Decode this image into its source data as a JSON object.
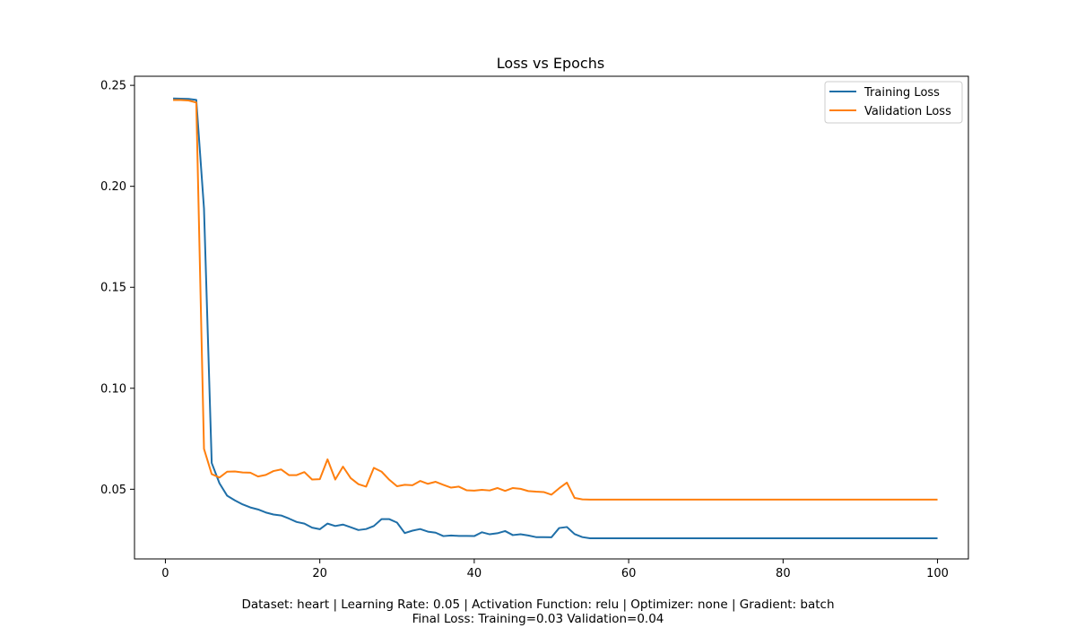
{
  "chart_data": {
    "type": "line",
    "title": "Loss vs Epochs",
    "xlabel": "",
    "ylabel": "",
    "xlim": [
      -4,
      104
    ],
    "ylim": [
      0.0155,
      0.2545
    ],
    "x_ticks": [
      0,
      20,
      40,
      60,
      80,
      100
    ],
    "y_ticks": [
      0.05,
      0.1,
      0.15,
      0.2,
      0.25
    ],
    "grid": false,
    "legend": "upper-right",
    "series": [
      {
        "name": "Training Loss",
        "color": "#1f6fa8",
        "x": [
          1,
          2,
          3,
          4,
          5,
          6,
          7,
          8,
          9,
          10,
          11,
          12,
          13,
          14,
          15,
          16,
          17,
          18,
          19,
          20,
          21,
          22,
          23,
          24,
          25,
          26,
          27,
          28,
          29,
          30,
          31,
          32,
          33,
          34,
          35,
          36,
          37,
          38,
          39,
          40,
          41,
          42,
          43,
          44,
          45,
          46,
          47,
          48,
          49,
          50,
          51,
          52,
          53,
          54,
          55,
          56,
          57,
          58,
          59,
          60,
          61,
          62,
          63,
          64,
          65,
          66,
          67,
          68,
          69,
          70,
          71,
          72,
          73,
          74,
          75,
          76,
          77,
          78,
          79,
          80,
          81,
          82,
          83,
          84,
          85,
          86,
          87,
          88,
          89,
          90,
          91,
          92,
          93,
          94,
          95,
          96,
          97,
          98,
          99,
          100
        ],
        "y": [
          0.2435,
          0.2434,
          0.2433,
          0.2428,
          0.189,
          0.063,
          0.053,
          0.0468,
          0.0445,
          0.0425,
          0.041,
          0.04,
          0.0385,
          0.0375,
          0.037,
          0.0355,
          0.0338,
          0.033,
          0.031,
          0.0302,
          0.033,
          0.0318,
          0.0325,
          0.0312,
          0.0298,
          0.0303,
          0.0318,
          0.0352,
          0.0352,
          0.0335,
          0.0283,
          0.0295,
          0.0303,
          0.029,
          0.0285,
          0.0268,
          0.0271,
          0.0269,
          0.0269,
          0.0268,
          0.0287,
          0.0277,
          0.0282,
          0.0293,
          0.0273,
          0.0277,
          0.0271,
          0.0263,
          0.0263,
          0.0262,
          0.0308,
          0.0313,
          0.0278,
          0.0263,
          0.0257,
          0.0257,
          0.0257,
          0.0257,
          0.0257,
          0.0257,
          0.0257,
          0.0257,
          0.0257,
          0.0257,
          0.0257,
          0.0257,
          0.0257,
          0.0257,
          0.0257,
          0.0257,
          0.0257,
          0.0257,
          0.0257,
          0.0257,
          0.0257,
          0.0257,
          0.0257,
          0.0257,
          0.0257,
          0.0257,
          0.0257,
          0.0257,
          0.0257,
          0.0257,
          0.0257,
          0.0257,
          0.0257,
          0.0257,
          0.0257,
          0.0257,
          0.0257,
          0.0257,
          0.0257,
          0.0257,
          0.0257,
          0.0257,
          0.0257,
          0.0257,
          0.0257,
          0.0257
        ]
      },
      {
        "name": "Validation Loss",
        "color": "#ff7f0e",
        "x": [
          1,
          2,
          3,
          4,
          5,
          6,
          7,
          8,
          9,
          10,
          11,
          12,
          13,
          14,
          15,
          16,
          17,
          18,
          19,
          20,
          21,
          22,
          23,
          24,
          25,
          26,
          27,
          28,
          29,
          30,
          31,
          32,
          33,
          34,
          35,
          36,
          37,
          38,
          39,
          40,
          41,
          42,
          43,
          44,
          45,
          46,
          47,
          48,
          49,
          50,
          51,
          52,
          53,
          54,
          55,
          56,
          57,
          58,
          59,
          60,
          61,
          62,
          63,
          64,
          65,
          66,
          67,
          68,
          69,
          70,
          71,
          72,
          73,
          74,
          75,
          76,
          77,
          78,
          79,
          80,
          81,
          82,
          83,
          84,
          85,
          86,
          87,
          88,
          89,
          90,
          91,
          92,
          93,
          94,
          95,
          96,
          97,
          98,
          99,
          100
        ],
        "y": [
          0.2427,
          0.2427,
          0.2425,
          0.2415,
          0.07,
          0.0575,
          0.0558,
          0.0587,
          0.0588,
          0.0583,
          0.0582,
          0.0563,
          0.0571,
          0.059,
          0.0598,
          0.057,
          0.057,
          0.0585,
          0.0548,
          0.055,
          0.0648,
          0.0548,
          0.0612,
          0.0555,
          0.0525,
          0.0513,
          0.0606,
          0.0587,
          0.0547,
          0.0515,
          0.0522,
          0.052,
          0.0541,
          0.0527,
          0.0537,
          0.0522,
          0.0508,
          0.0513,
          0.0495,
          0.0493,
          0.0497,
          0.0494,
          0.0506,
          0.0492,
          0.0506,
          0.0502,
          0.0491,
          0.0488,
          0.0486,
          0.0473,
          0.0505,
          0.0533,
          0.0457,
          0.045,
          0.0449,
          0.0449,
          0.0449,
          0.0449,
          0.0449,
          0.0449,
          0.0449,
          0.0449,
          0.0449,
          0.0449,
          0.0449,
          0.0449,
          0.0449,
          0.0449,
          0.0449,
          0.0449,
          0.0449,
          0.0449,
          0.0449,
          0.0449,
          0.0449,
          0.0449,
          0.0449,
          0.0449,
          0.0449,
          0.0449,
          0.0449,
          0.0449,
          0.0449,
          0.0449,
          0.0449,
          0.0449,
          0.0449,
          0.0449,
          0.0449,
          0.0449,
          0.0449,
          0.0449,
          0.0449,
          0.0449,
          0.0449,
          0.0449,
          0.0449,
          0.0449,
          0.0449,
          0.0449
        ]
      }
    ]
  },
  "caption": {
    "line1": "Dataset: heart | Learning Rate: 0.05 | Activation Function: relu | Optimizer: none | Gradient: batch",
    "line2": "Final Loss: Training=0.03 Validation=0.04"
  }
}
